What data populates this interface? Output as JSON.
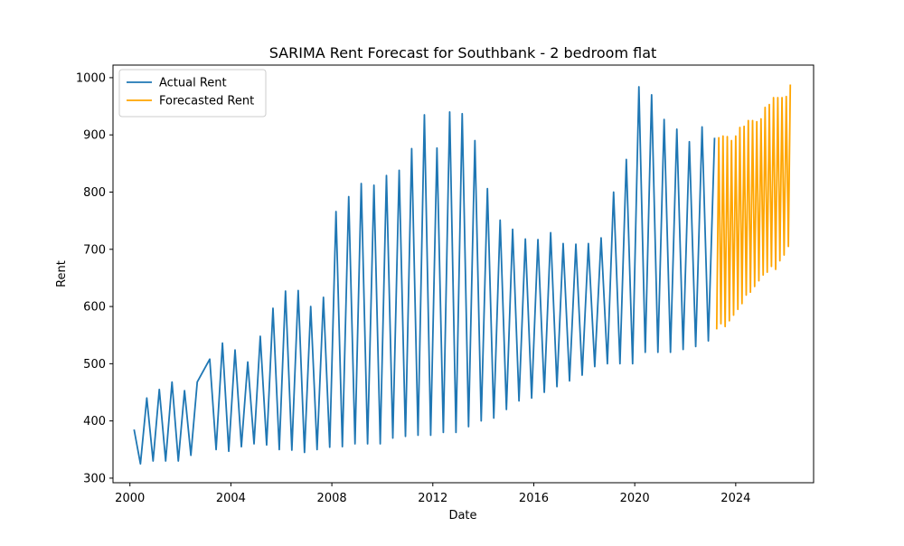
{
  "chart_data": {
    "type": "line",
    "title": "SARIMA Rent Forecast for Southbank - 2 bedroom flat",
    "xlabel": "Date",
    "ylabel": "Rent",
    "x_type": "date",
    "xlim": [
      "1999-05-01",
      "2027-02-01"
    ],
    "ylim": [
      292,
      1022
    ],
    "x_ticks": [
      {
        "date": "2000-01-01",
        "label": "2000"
      },
      {
        "date": "2004-01-01",
        "label": "2004"
      },
      {
        "date": "2008-01-01",
        "label": "2008"
      },
      {
        "date": "2012-01-01",
        "label": "2012"
      },
      {
        "date": "2016-01-01",
        "label": "2016"
      },
      {
        "date": "2020-01-01",
        "label": "2020"
      },
      {
        "date": "2024-01-01",
        "label": "2024"
      }
    ],
    "y_ticks": [
      300,
      400,
      500,
      600,
      700,
      800,
      900,
      1000
    ],
    "grid": false,
    "legend_position": "top-left",
    "series": [
      {
        "name": "Actual Rent",
        "color": "#1f77b4",
        "points": [
          [
            "2000-03-01",
            385
          ],
          [
            "2000-06-01",
            325
          ],
          [
            "2000-09-01",
            440
          ],
          [
            "2000-12-01",
            330
          ],
          [
            "2001-03-01",
            455
          ],
          [
            "2001-06-01",
            330
          ],
          [
            "2001-09-01",
            468
          ],
          [
            "2001-12-01",
            330
          ],
          [
            "2002-03-01",
            453
          ],
          [
            "2002-06-01",
            340
          ],
          [
            "2002-09-01",
            468
          ],
          [
            "2003-03-01",
            508
          ],
          [
            "2003-06-01",
            350
          ],
          [
            "2003-09-01",
            536
          ],
          [
            "2003-12-01",
            347
          ],
          [
            "2004-03-01",
            524
          ],
          [
            "2004-06-01",
            355
          ],
          [
            "2004-09-01",
            503
          ],
          [
            "2004-12-01",
            360
          ],
          [
            "2005-03-01",
            548
          ],
          [
            "2005-06-01",
            358
          ],
          [
            "2005-09-01",
            597
          ],
          [
            "2005-12-01",
            350
          ],
          [
            "2006-03-01",
            627
          ],
          [
            "2006-06-01",
            349
          ],
          [
            "2006-09-01",
            628
          ],
          [
            "2006-12-01",
            345
          ],
          [
            "2007-03-01",
            600
          ],
          [
            "2007-06-01",
            350
          ],
          [
            "2007-09-01",
            616
          ],
          [
            "2007-12-01",
            354
          ],
          [
            "2008-03-01",
            766
          ],
          [
            "2008-06-01",
            355
          ],
          [
            "2008-09-01",
            792
          ],
          [
            "2008-12-01",
            360
          ],
          [
            "2009-03-01",
            815
          ],
          [
            "2009-06-01",
            360
          ],
          [
            "2009-09-01",
            812
          ],
          [
            "2009-12-01",
            360
          ],
          [
            "2010-03-01",
            829
          ],
          [
            "2010-06-01",
            370
          ],
          [
            "2010-09-01",
            838
          ],
          [
            "2010-12-01",
            373
          ],
          [
            "2011-03-01",
            876
          ],
          [
            "2011-06-01",
            375
          ],
          [
            "2011-09-01",
            935
          ],
          [
            "2011-12-01",
            375
          ],
          [
            "2012-03-01",
            877
          ],
          [
            "2012-06-01",
            380
          ],
          [
            "2012-09-01",
            940
          ],
          [
            "2012-12-01",
            380
          ],
          [
            "2013-03-01",
            937
          ],
          [
            "2013-06-01",
            390
          ],
          [
            "2013-09-01",
            890
          ],
          [
            "2013-12-01",
            400
          ],
          [
            "2014-03-01",
            806
          ],
          [
            "2014-06-01",
            405
          ],
          [
            "2014-09-01",
            751
          ],
          [
            "2014-12-01",
            420
          ],
          [
            "2015-03-01",
            735
          ],
          [
            "2015-06-01",
            435
          ],
          [
            "2015-09-01",
            718
          ],
          [
            "2015-12-01",
            440
          ],
          [
            "2016-03-01",
            717
          ],
          [
            "2016-06-01",
            450
          ],
          [
            "2016-09-01",
            729
          ],
          [
            "2016-12-01",
            460
          ],
          [
            "2017-03-01",
            710
          ],
          [
            "2017-06-01",
            470
          ],
          [
            "2017-09-01",
            709
          ],
          [
            "2017-12-01",
            480
          ],
          [
            "2018-03-01",
            710
          ],
          [
            "2018-06-01",
            495
          ],
          [
            "2018-09-01",
            720
          ],
          [
            "2018-12-01",
            500
          ],
          [
            "2019-03-01",
            800
          ],
          [
            "2019-06-01",
            500
          ],
          [
            "2019-09-01",
            857
          ],
          [
            "2019-12-01",
            500
          ],
          [
            "2020-03-01",
            984
          ],
          [
            "2020-06-01",
            520
          ],
          [
            "2020-09-01",
            970
          ],
          [
            "2020-12-01",
            520
          ],
          [
            "2021-03-01",
            927
          ],
          [
            "2021-06-01",
            520
          ],
          [
            "2021-09-01",
            910
          ],
          [
            "2021-12-01",
            525
          ],
          [
            "2022-03-01",
            888
          ],
          [
            "2022-06-01",
            530
          ],
          [
            "2022-09-01",
            914
          ],
          [
            "2022-12-01",
            540
          ],
          [
            "2023-03-01",
            895
          ]
        ]
      },
      {
        "name": "Forecasted Rent",
        "color": "#ffa500",
        "points": [
          [
            "2023-04-01",
            560
          ],
          [
            "2023-05-01",
            895
          ],
          [
            "2023-06-01",
            570
          ],
          [
            "2023-07-01",
            898
          ],
          [
            "2023-08-01",
            565
          ],
          [
            "2023-09-01",
            897
          ],
          [
            "2023-10-01",
            575
          ],
          [
            "2023-11-01",
            890
          ],
          [
            "2023-12-01",
            585
          ],
          [
            "2024-01-01",
            898
          ],
          [
            "2024-02-01",
            595
          ],
          [
            "2024-03-01",
            913
          ],
          [
            "2024-04-01",
            605
          ],
          [
            "2024-05-01",
            915
          ],
          [
            "2024-06-01",
            620
          ],
          [
            "2024-07-01",
            925
          ],
          [
            "2024-08-01",
            625
          ],
          [
            "2024-09-01",
            925
          ],
          [
            "2024-10-01",
            635
          ],
          [
            "2024-11-01",
            923
          ],
          [
            "2024-12-01",
            645
          ],
          [
            "2025-01-01",
            928
          ],
          [
            "2025-02-01",
            655
          ],
          [
            "2025-03-01",
            948
          ],
          [
            "2025-04-01",
            660
          ],
          [
            "2025-05-01",
            953
          ],
          [
            "2025-06-01",
            670
          ],
          [
            "2025-07-01",
            965
          ],
          [
            "2025-08-01",
            665
          ],
          [
            "2025-09-01",
            965
          ],
          [
            "2025-10-01",
            680
          ],
          [
            "2025-11-01",
            965
          ],
          [
            "2025-12-01",
            690
          ],
          [
            "2026-01-01",
            967
          ],
          [
            "2026-02-01",
            705
          ],
          [
            "2026-03-01",
            988
          ]
        ]
      }
    ]
  }
}
